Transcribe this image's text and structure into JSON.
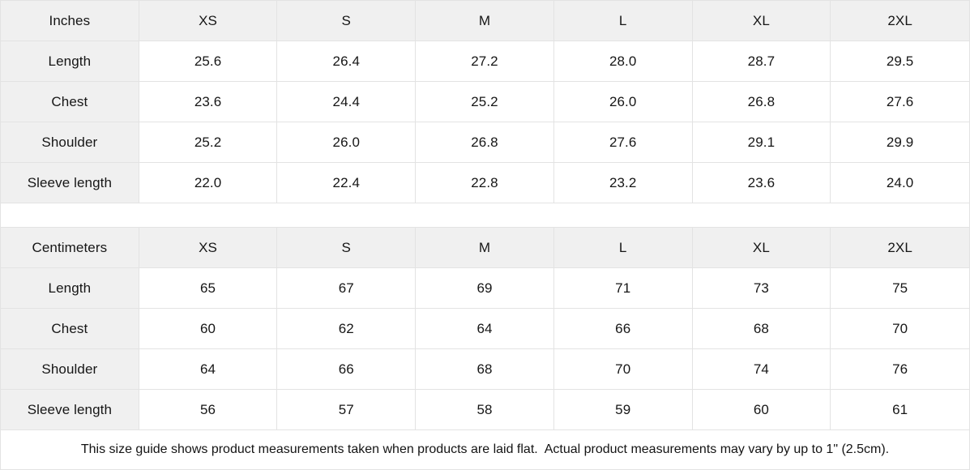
{
  "tables": [
    {
      "unit_label": "Inches",
      "sizes": [
        "XS",
        "S",
        "M",
        "L",
        "XL",
        "2XL"
      ],
      "rows": [
        {
          "label": "Length",
          "values": [
            "25.6",
            "26.4",
            "27.2",
            "28.0",
            "28.7",
            "29.5"
          ]
        },
        {
          "label": "Chest",
          "values": [
            "23.6",
            "24.4",
            "25.2",
            "26.0",
            "26.8",
            "27.6"
          ]
        },
        {
          "label": "Shoulder",
          "values": [
            "25.2",
            "26.0",
            "26.8",
            "27.6",
            "29.1",
            "29.9"
          ]
        },
        {
          "label": "Sleeve length",
          "values": [
            "22.0",
            "22.4",
            "22.8",
            "23.2",
            "23.6",
            "24.0"
          ]
        }
      ]
    },
    {
      "unit_label": "Centimeters",
      "sizes": [
        "XS",
        "S",
        "M",
        "L",
        "XL",
        "2XL"
      ],
      "rows": [
        {
          "label": "Length",
          "values": [
            "65",
            "67",
            "69",
            "71",
            "73",
            "75"
          ]
        },
        {
          "label": "Chest",
          "values": [
            "60",
            "62",
            "64",
            "66",
            "68",
            "70"
          ]
        },
        {
          "label": "Shoulder",
          "values": [
            "64",
            "66",
            "68",
            "70",
            "74",
            "76"
          ]
        },
        {
          "label": "Sleeve length",
          "values": [
            "56",
            "57",
            "58",
            "59",
            "60",
            "61"
          ]
        }
      ]
    }
  ],
  "footer": {
    "note": "This size guide shows product measurements taken when products are laid flat.  Actual product measurements may vary by up to 1\" (2.5cm)."
  },
  "colors": {
    "header_background": "#f0f0f0",
    "cell_background": "#ffffff",
    "border": "#e3e3e3",
    "text": "#161616"
  }
}
